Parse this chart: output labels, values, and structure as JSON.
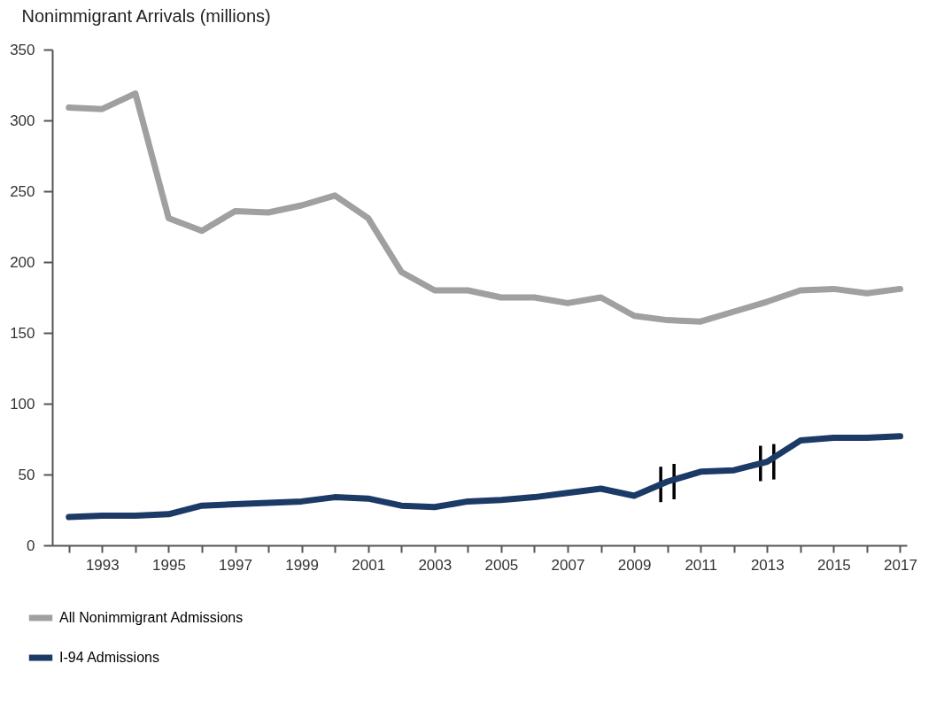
{
  "chart_data": {
    "type": "line",
    "ylabel": "Nonimmigrant Arrivals (millions)",
    "x": [
      1992,
      1993,
      1994,
      1995,
      1996,
      1997,
      1998,
      1999,
      2000,
      2001,
      2002,
      2003,
      2004,
      2005,
      2006,
      2007,
      2008,
      2009,
      2010,
      2011,
      2012,
      2013,
      2014,
      2015,
      2016,
      2017
    ],
    "series": [
      {
        "name": "All Nonimmigrant Admissions",
        "color": "#a0a0a0",
        "values": [
          309,
          308,
          319,
          231,
          222,
          236,
          235,
          240,
          247,
          231,
          193,
          180,
          180,
          175,
          175,
          171,
          175,
          162,
          159,
          158,
          165,
          172,
          180,
          181,
          178,
          181
        ]
      },
      {
        "name": "I-94 Admissions",
        "color": "#1b3a66",
        "values": [
          20,
          21,
          21,
          22,
          28,
          29,
          30,
          31,
          34,
          33,
          28,
          27,
          31,
          32,
          34,
          37,
          40,
          35,
          45,
          52,
          53,
          59,
          74,
          76,
          76,
          77
        ]
      }
    ],
    "xlim": [
      1991.5,
      2017.2
    ],
    "xticks": [
      {
        "value": 1992,
        "label": null
      },
      1993,
      {
        "value": 1994,
        "label": null
      },
      1995,
      {
        "value": 1996,
        "label": null
      },
      1997,
      {
        "value": 1998,
        "label": null
      },
      1999,
      {
        "value": 2000,
        "label": null
      },
      2001,
      {
        "value": 2002,
        "label": null
      },
      2003,
      {
        "value": 2004,
        "label": null
      },
      2005,
      {
        "value": 2006,
        "label": null
      },
      2007,
      {
        "value": 2008,
        "label": null
      },
      2009,
      {
        "value": 2010,
        "label": null
      },
      2011,
      {
        "value": 2012,
        "label": null
      },
      2013,
      {
        "value": 2014,
        "label": null
      },
      2015,
      {
        "value": 2016,
        "label": null
      },
      2017
    ],
    "ylim": [
      0,
      350
    ],
    "yticks": [
      0,
      50,
      100,
      150,
      200,
      250,
      300,
      350
    ],
    "grid": false,
    "legend": "bottom left",
    "line_style": "solid"
  }
}
